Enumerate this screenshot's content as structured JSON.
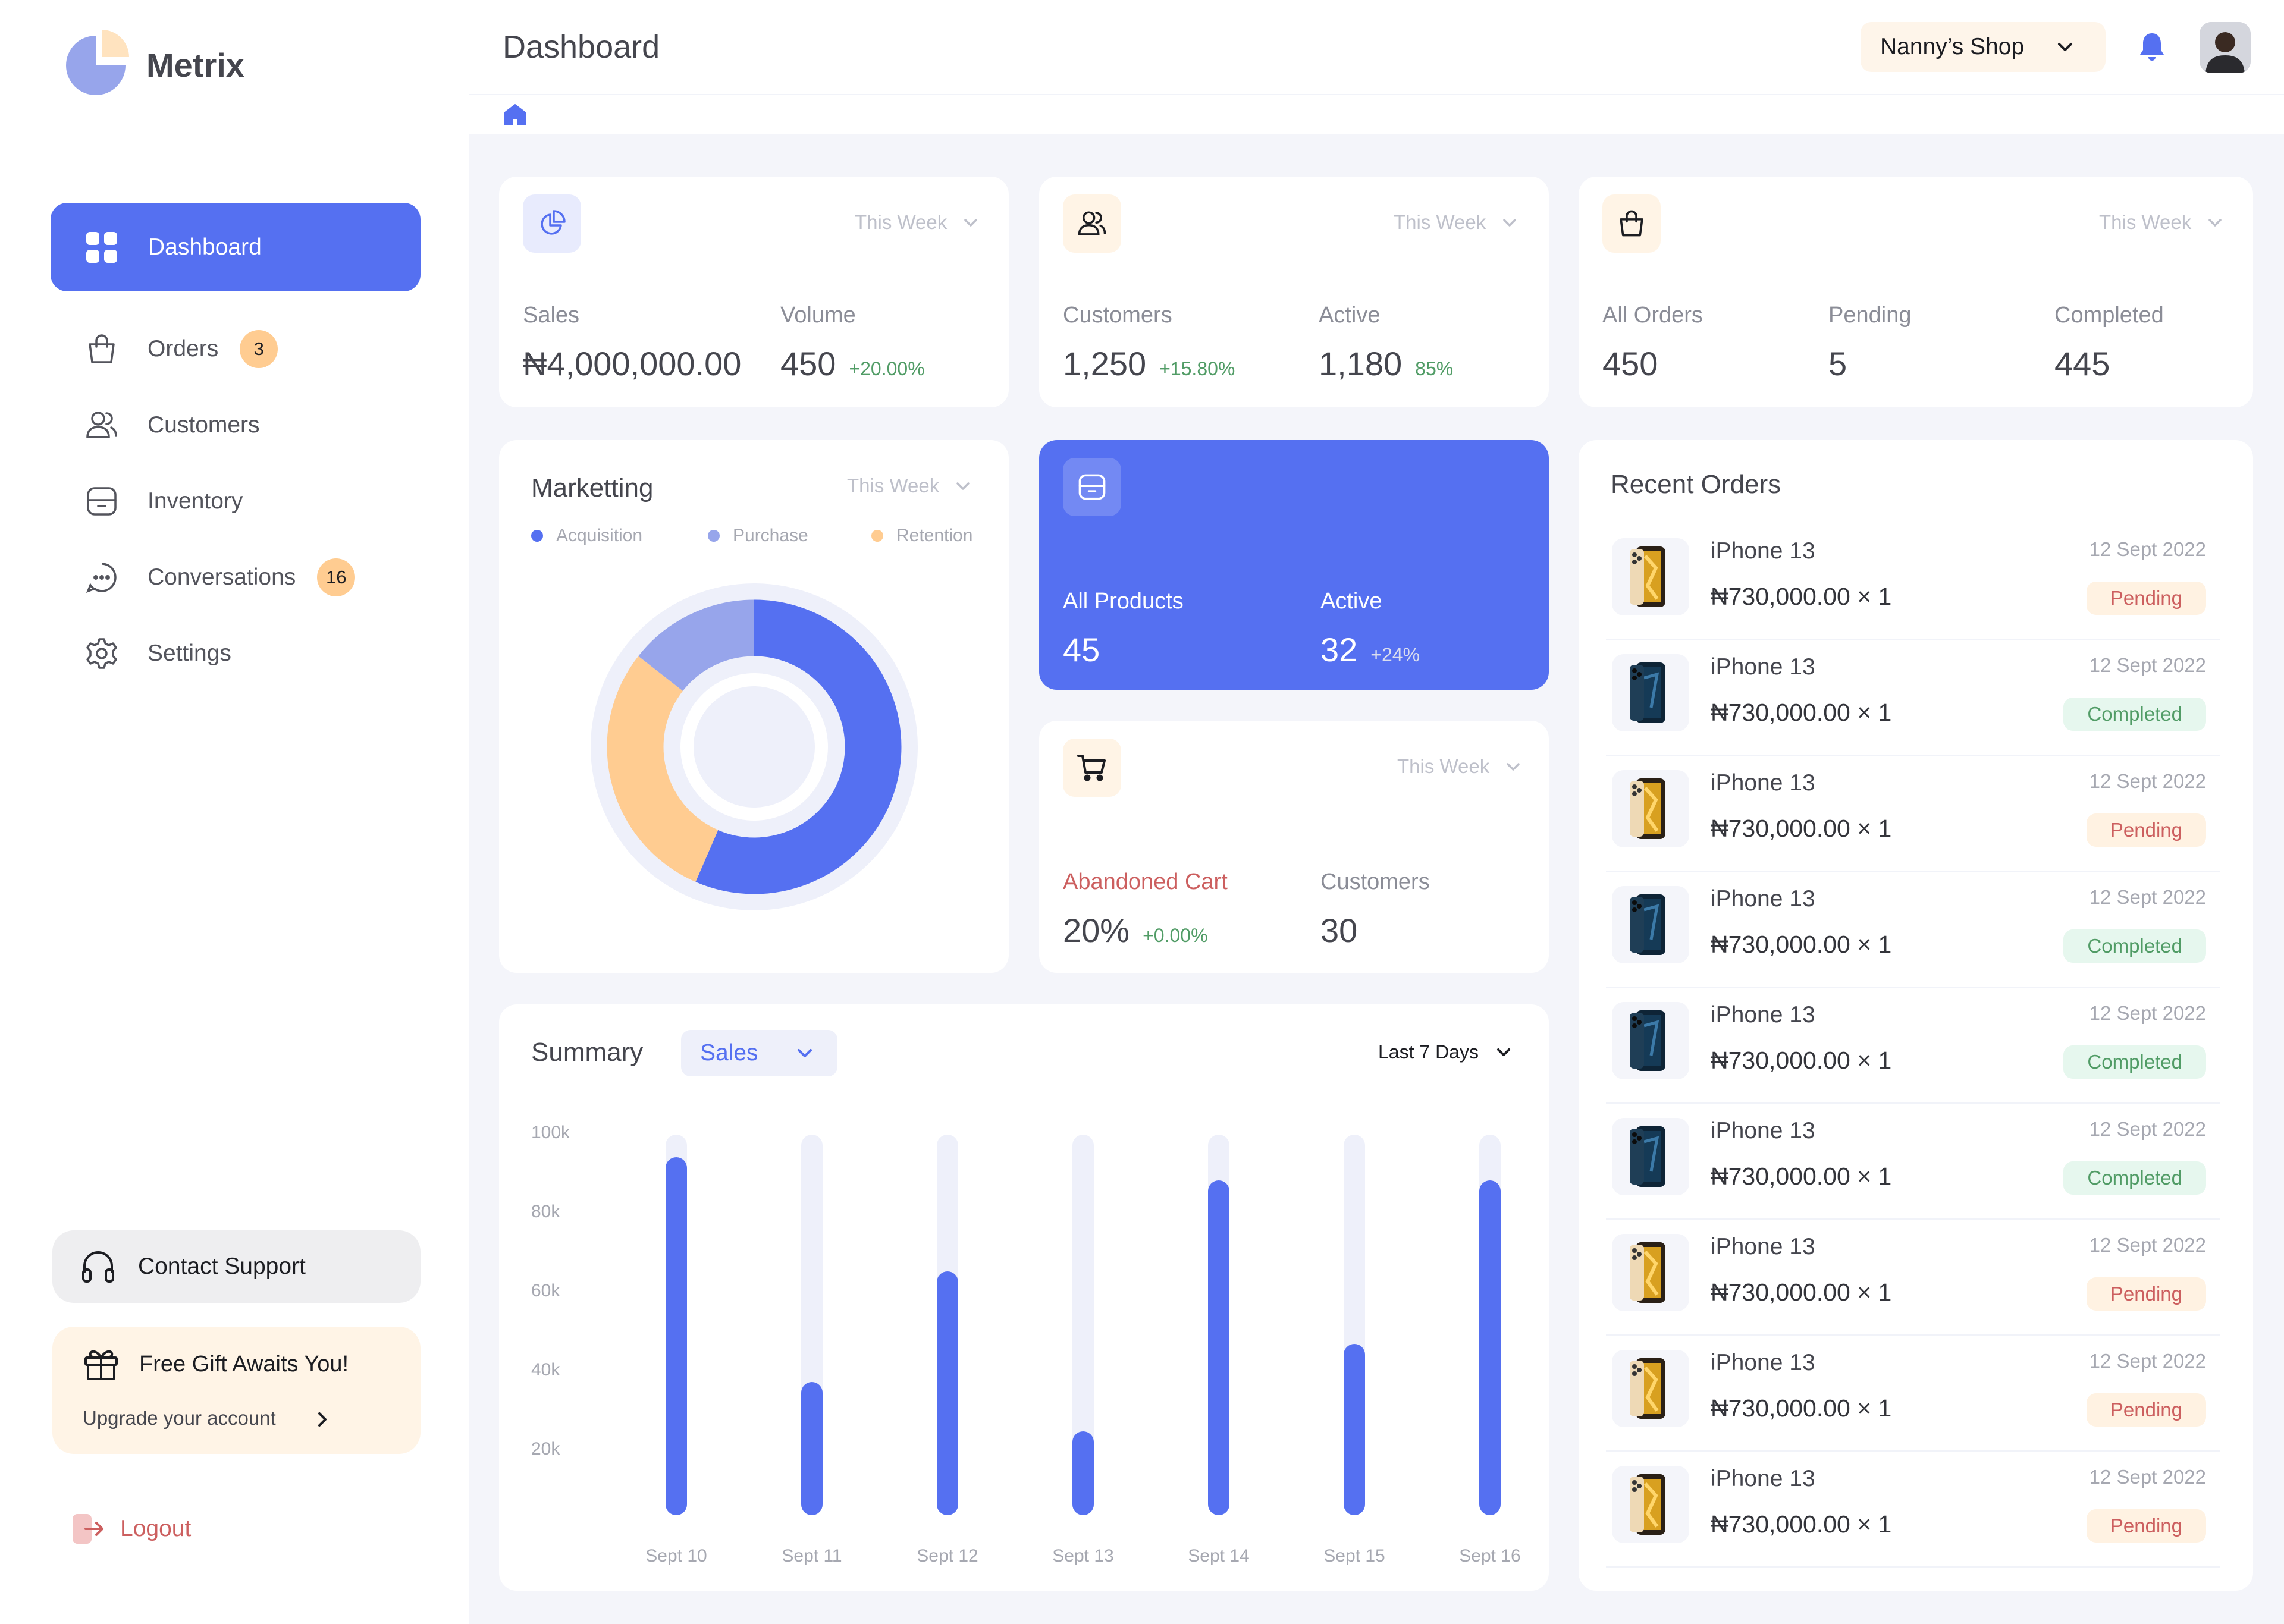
{
  "brand": {
    "name": "Metrix"
  },
  "sidebar": {
    "items": [
      {
        "label": "Dashboard",
        "icon": "grid-icon"
      },
      {
        "label": "Orders",
        "icon": "bag-icon",
        "badge": "3"
      },
      {
        "label": "Customers",
        "icon": "users-icon"
      },
      {
        "label": "Inventory",
        "icon": "folder-icon"
      },
      {
        "label": "Conversations",
        "icon": "chat-icon",
        "badge": "16"
      },
      {
        "label": "Settings",
        "icon": "gear-icon"
      }
    ],
    "support_label": "Contact Support",
    "gift_title": "Free Gift Awaits You!",
    "gift_sub": "Upgrade your account",
    "logout_label": "Logout"
  },
  "header": {
    "title": "Dashboard",
    "shop": "Nanny’s Shop"
  },
  "stats": {
    "sales": {
      "period": "This Week",
      "label1": "Sales",
      "value1": "₦4,000,000.00",
      "label2": "Volume",
      "value2": "450",
      "change2": "+20.00%"
    },
    "customers": {
      "period": "This Week",
      "label1": "Customers",
      "value1": "1,250",
      "change1": "+15.80%",
      "label2": "Active",
      "value2": "1,180",
      "change2": "85%"
    },
    "orders": {
      "period": "This Week",
      "label1": "All Orders",
      "value1": "450",
      "label2": "Pending",
      "value2": "5",
      "label3": "Completed",
      "value3": "445"
    }
  },
  "marketing": {
    "title": "Marketting",
    "period": "This Week",
    "legend": [
      "Acquisition",
      "Purchase",
      "Retention"
    ],
    "colors": {
      "acquisition": "#5570F1",
      "purchase": "#97A5EB",
      "retention": "#FFCC91"
    }
  },
  "products": {
    "label1": "All Products",
    "value1": "45",
    "label2": "Active",
    "value2": "32",
    "change2": "+24%"
  },
  "cart": {
    "period": "This Week",
    "label1": "Abandoned Cart",
    "value1": "20%",
    "change1": "+0.00%",
    "label2": "Customers",
    "value2": "30"
  },
  "summary": {
    "title": "Summary",
    "metric": "Sales",
    "range": "Last 7 Days"
  },
  "chart_data": {
    "type": "bar",
    "categories": [
      "Sept 10",
      "Sept 11",
      "Sept 12",
      "Sept 13",
      "Sept 14",
      "Sept 15",
      "Sept 16"
    ],
    "values": [
      94,
      35,
      64,
      22,
      88,
      45,
      88
    ],
    "yticks": [
      "100k",
      "80k",
      "60k",
      "40k",
      "20k"
    ],
    "ylim": [
      0,
      100
    ],
    "xlabel": "",
    "ylabel": ""
  },
  "recent_orders": {
    "title": "Recent Orders",
    "items": [
      {
        "name": "iPhone 13",
        "price": "₦730,000.00 × 1",
        "date": "12 Sept 2022",
        "status": "Pending",
        "variant": "gold"
      },
      {
        "name": "iPhone 13",
        "price": "₦730,000.00 × 1",
        "date": "12 Sept 2022",
        "status": "Completed",
        "variant": "blue"
      },
      {
        "name": "iPhone 13",
        "price": "₦730,000.00 × 1",
        "date": "12 Sept 2022",
        "status": "Pending",
        "variant": "gold"
      },
      {
        "name": "iPhone 13",
        "price": "₦730,000.00 × 1",
        "date": "12 Sept 2022",
        "status": "Completed",
        "variant": "blue"
      },
      {
        "name": "iPhone 13",
        "price": "₦730,000.00 × 1",
        "date": "12 Sept 2022",
        "status": "Completed",
        "variant": "blue"
      },
      {
        "name": "iPhone 13",
        "price": "₦730,000.00 × 1",
        "date": "12 Sept 2022",
        "status": "Completed",
        "variant": "blue"
      },
      {
        "name": "iPhone 13",
        "price": "₦730,000.00 × 1",
        "date": "12 Sept 2022",
        "status": "Pending",
        "variant": "gold"
      },
      {
        "name": "iPhone 13",
        "price": "₦730,000.00 × 1",
        "date": "12 Sept 2022",
        "status": "Pending",
        "variant": "gold"
      },
      {
        "name": "iPhone 13",
        "price": "₦730,000.00 × 1",
        "date": "12 Sept 2022",
        "status": "Pending",
        "variant": "gold"
      }
    ]
  }
}
